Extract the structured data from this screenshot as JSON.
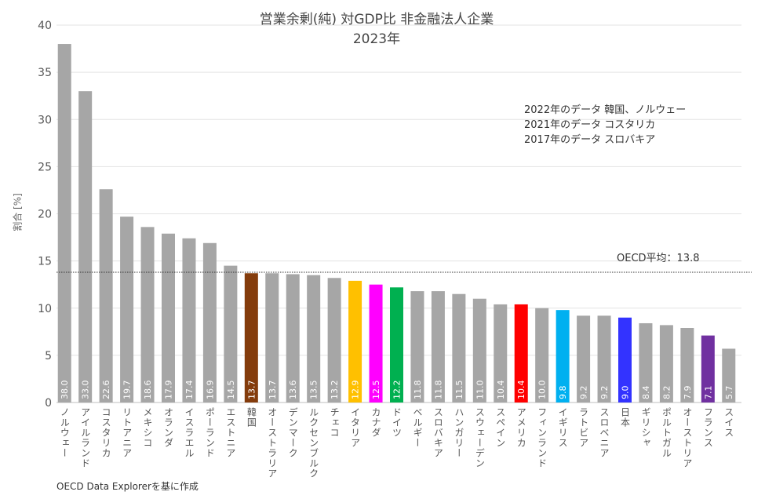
{
  "chart_data": {
    "type": "bar",
    "title": "営業余剰(純) 対GDP比 非金融法人企業",
    "subtitle": "2023年",
    "xlabel": "",
    "ylabel": "割合 [%]",
    "ylim": [
      0,
      40
    ],
    "yticks": [
      0,
      5,
      10,
      15,
      20,
      25,
      30,
      35,
      40
    ],
    "grid": true,
    "default_color": "#a6a6a6",
    "categories": [
      "ノルウェー",
      "アイルランド",
      "コスタリカ",
      "リトアニア",
      "メキシコ",
      "オランダ",
      "イスラエル",
      "ポーランド",
      "エストニア",
      "韓国",
      "オーストラリア",
      "デンマーク",
      "ルクセンブルク",
      "チェコ",
      "イタリア",
      "カナダ",
      "ドイツ",
      "ベルギー",
      "スロバキア",
      "ハンガリー",
      "スウェーデン",
      "スペイン",
      "アメリカ",
      "フィンランド",
      "イギリス",
      "ラトビア",
      "スロベニア",
      "日本",
      "ギリシャ",
      "ポルトガル",
      "オーストリア",
      "フランス",
      "スイス"
    ],
    "values": [
      38.0,
      33.0,
      22.6,
      19.7,
      18.6,
      17.9,
      17.4,
      16.9,
      14.5,
      13.7,
      13.7,
      13.6,
      13.5,
      13.2,
      12.9,
      12.5,
      12.2,
      11.8,
      11.8,
      11.5,
      11.0,
      10.4,
      10.4,
      10.0,
      9.8,
      9.2,
      9.2,
      9.0,
      8.4,
      8.2,
      7.9,
      7.1,
      5.7
    ],
    "value_labels": [
      "38.0",
      "33.0",
      "22.6",
      "19.7",
      "18.6",
      "17.9",
      "17.4",
      "16.9",
      "14.5",
      "13.7",
      "13.7",
      "13.6",
      "13.5",
      "13.2",
      "12.9",
      "12.5",
      "12.2",
      "11.8",
      "11.8",
      "11.5",
      "11.0",
      "10.4",
      "10.4",
      "10.0",
      "9.8",
      "9.2",
      "9.2",
      "9.0",
      "8.4",
      "8.2",
      "7.9",
      "7.1",
      "5.7"
    ],
    "highlight_colors": {
      "韓国": "#843c0c",
      "イタリア": "#ffc000",
      "カナダ": "#ff00ff",
      "ドイツ": "#00b050",
      "アメリカ": "#ff0000",
      "イギリス": "#00b0f0",
      "日本": "#3333ff",
      "フランス": "#7030a0"
    },
    "reference_line": {
      "value": 13.8,
      "label": "OECD平均：13.8",
      "style": "dotted"
    },
    "annotations": [
      "2022年のデータ 韓国、ノルウェー",
      "2021年のデータ コスタリカ",
      "2017年のデータ スロバキア"
    ],
    "source": "OECD Data Explorerを基に作成"
  }
}
